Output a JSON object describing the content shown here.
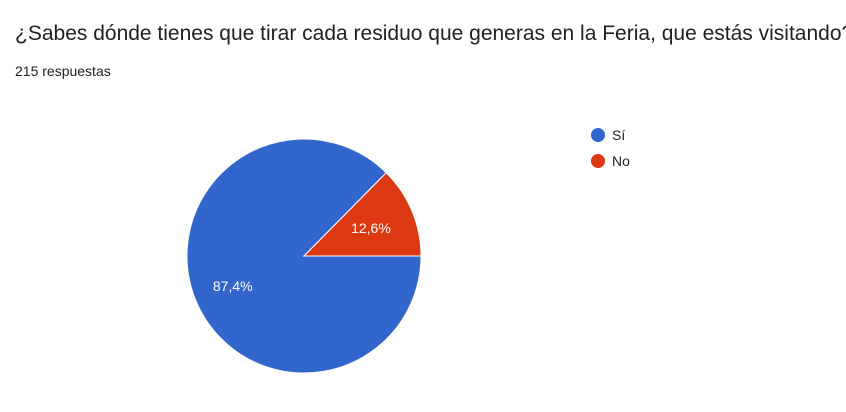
{
  "header": {
    "title": "¿Sabes dónde tienes que tirar cada residuo que generas en la Feria, que estás visitando?",
    "responses": "215 respuestas"
  },
  "colors": {
    "si": "#3366cc",
    "no": "#dc3912"
  },
  "chart_data": {
    "type": "pie",
    "title": "¿Sabes dónde tienes que tirar cada residuo que generas en la Feria, que estás visitando?",
    "legend_position": "right",
    "slices": [
      {
        "label": "Sí",
        "value": 87.4,
        "display": "87,4%",
        "color": "#3366cc"
      },
      {
        "label": "No",
        "value": 12.6,
        "display": "12,6%",
        "color": "#dc3912"
      }
    ]
  }
}
